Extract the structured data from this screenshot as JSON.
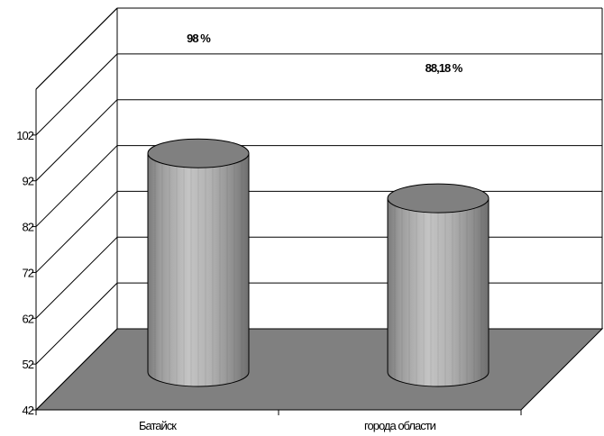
{
  "chart_data": {
    "type": "bar",
    "style": "3d-cylinder",
    "categories": [
      "Батайск",
      "города области"
    ],
    "values": [
      98,
      88.18
    ],
    "data_labels": [
      "98 %",
      "88,18 %"
    ],
    "ylim": [
      42,
      112
    ],
    "yticks": [
      42,
      52,
      62,
      72,
      82,
      92,
      102
    ],
    "title": "",
    "xlabel": "",
    "ylabel": "",
    "grid": true,
    "legend": "none",
    "colors": {
      "floor": "#808080",
      "bar_body": "#a6a6a6",
      "bar_top": "#808080",
      "gridline": "#000000"
    }
  }
}
